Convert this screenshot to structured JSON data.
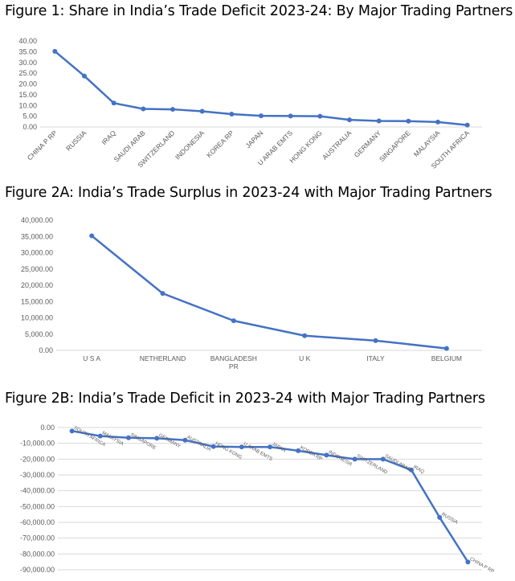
{
  "chart_data": [
    {
      "type": "line",
      "title": "Figure 1: Share in India’s Trade Deficit 2023-24: By Major Trading Partners",
      "categories": [
        "CHINA P RP",
        "RUSSIA",
        "IRAQ",
        "SAUDI ARAB",
        "SWITZERLAND",
        "INDONESIA",
        "KOREA RP",
        "JAPAN",
        "U ARAB EMTS",
        "HONG KONG",
        "AUSTRALIA",
        "GERMANY",
        "SINGAPORE",
        "MALAYSIA",
        "SOUTH AFRICA"
      ],
      "values": [
        35.2,
        23.7,
        11.1,
        8.4,
        8.2,
        7.3,
        6.0,
        5.2,
        5.1,
        5.0,
        3.3,
        2.8,
        2.7,
        2.3,
        0.9
      ],
      "yticks": [
        "0.00",
        "5.00",
        "10.00",
        "15.00",
        "20.00",
        "25.00",
        "30.00",
        "35.00",
        "40.00"
      ],
      "ylim": [
        0,
        40
      ],
      "grid": false
    },
    {
      "type": "line",
      "title": "Figure 2A: India’s Trade Surplus in 2023-24 with Major Trading Partners",
      "categories": [
        "U S A",
        "NETHERLAND",
        "BANGLADESH PR",
        "U K",
        "ITALY",
        "BELGIUM"
      ],
      "category_lines": [
        [
          "U S A"
        ],
        [
          "NETHERLAND"
        ],
        [
          "BANGLADESH",
          "PR"
        ],
        [
          "U K"
        ],
        [
          "ITALY"
        ],
        [
          "BELGIUM"
        ]
      ],
      "values": [
        35200,
        17500,
        9100,
        4500,
        3000,
        600
      ],
      "yticks": [
        "0.00",
        "5,000.00",
        "10,000.00",
        "15,000.00",
        "20,000.00",
        "25,000.00",
        "30,000.00",
        "35,000.00",
        "40,000.00"
      ],
      "ylim": [
        0,
        40000
      ],
      "grid": false
    },
    {
      "type": "line",
      "title": "Figure 2B: India’s Trade Deficit in 2023-24 with Major Trading Partners",
      "categories": [
        "SOUTH AFRICA",
        "MALAYSIA",
        "SINGAPORE",
        "GERMANY",
        "AUSTRALIA",
        "HONG KONG",
        "U ARAB EMTS",
        "JAPAN",
        "KOREA RP",
        "INDONESIA",
        "SWITZERLAND",
        "SAUDI ARAB",
        "IRAQ",
        "RUSSIA",
        "CHINA P RP"
      ],
      "values": [
        -2200,
        -5400,
        -6500,
        -6800,
        -8000,
        -12000,
        -12300,
        -12300,
        -14700,
        -17500,
        -20000,
        -20000,
        -26900,
        -56900,
        -85100
      ],
      "yticks": [
        "0.00",
        "-10,000.00",
        "-20,000.00",
        "-30,000.00",
        "-40,000.00",
        "-50,000.00",
        "-60,000.00",
        "-70,000.00",
        "-80,000.00",
        "-90,000.00"
      ],
      "ylim": [
        -90000,
        0
      ],
      "grid": true
    }
  ],
  "colors": {
    "series": "#4472c4",
    "axis": "#d9d9d9",
    "tick_text": "#595959"
  }
}
